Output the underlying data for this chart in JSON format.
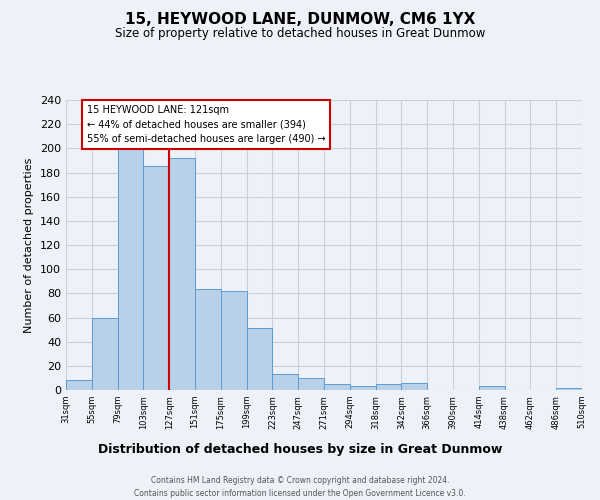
{
  "title": "15, HEYWOOD LANE, DUNMOW, CM6 1YX",
  "subtitle": "Size of property relative to detached houses in Great Dunmow",
  "xlabel": "Distribution of detached houses by size in Great Dunmow",
  "ylabel": "Number of detached properties",
  "bin_edges": [
    "31sqm",
    "55sqm",
    "79sqm",
    "103sqm",
    "127sqm",
    "151sqm",
    "175sqm",
    "199sqm",
    "223sqm",
    "247sqm",
    "271sqm",
    "294sqm",
    "318sqm",
    "342sqm",
    "366sqm",
    "390sqm",
    "414sqm",
    "438sqm",
    "462sqm",
    "486sqm",
    "510sqm"
  ],
  "bar_values": [
    8,
    60,
    200,
    185,
    192,
    84,
    82,
    51,
    13,
    10,
    5,
    3,
    5,
    6,
    0,
    0,
    3,
    0,
    0,
    2
  ],
  "bar_color": "#b8d0e8",
  "bar_edge_color": "#5b9bd5",
  "vline_color": "#cc0000",
  "annotation_title": "15 HEYWOOD LANE: 121sqm",
  "annotation_line1": "← 44% of detached houses are smaller (394)",
  "annotation_line2": "55% of semi-detached houses are larger (490) →",
  "ylim": [
    0,
    240
  ],
  "yticks": [
    0,
    20,
    40,
    60,
    80,
    100,
    120,
    140,
    160,
    180,
    200,
    220,
    240
  ],
  "bg_color": "#eef2f8",
  "grid_color": "#c8d0e0",
  "footer1": "Contains HM Land Registry data © Crown copyright and database right 2024.",
  "footer2": "Contains public sector information licensed under the Open Government Licence v3.0."
}
